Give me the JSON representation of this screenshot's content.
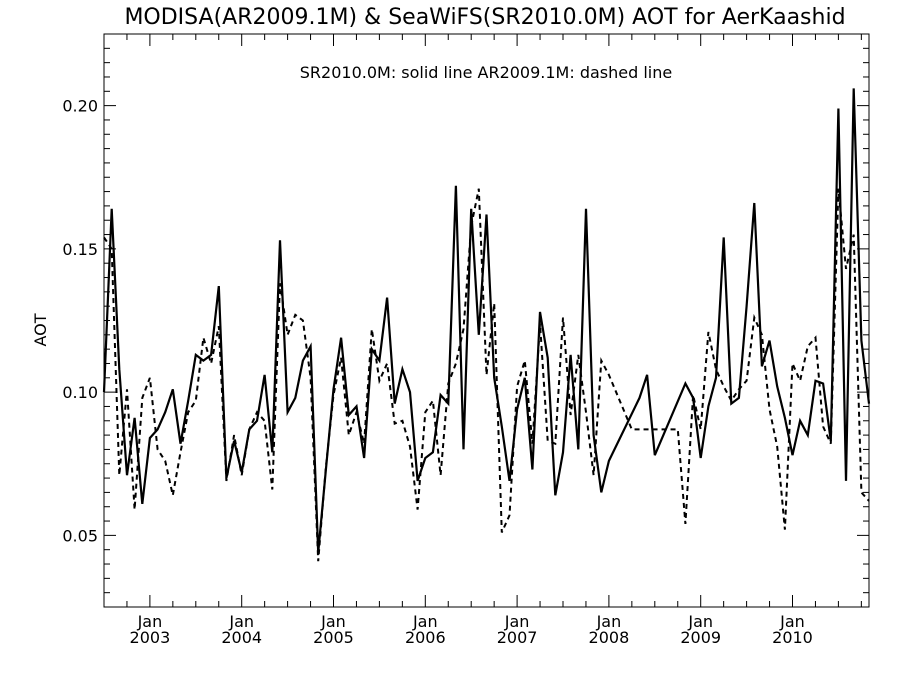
{
  "chart_data": {
    "type": "line",
    "title": "MODISA(AR2009.1M) & SeaWiFS(SR2010.0M)  AOT for AerKaashid",
    "annotation": "SR2010.0M: solid line   AR2009.1M: dashed line",
    "ylabel": "AOT",
    "xlabel": "",
    "ylim": [
      0.025,
      0.225
    ],
    "xlim": [
      "2002-07-01",
      "2010-11-01"
    ],
    "yticks": [
      {
        "value": 0.05,
        "label": "0.05"
      },
      {
        "value": 0.1,
        "label": "0.10"
      },
      {
        "value": 0.15,
        "label": "0.15"
      },
      {
        "value": 0.2,
        "label": "0.20"
      }
    ],
    "xticks": [
      {
        "date": "2003-01-01",
        "month": "Jan",
        "year": "2003"
      },
      {
        "date": "2004-01-01",
        "month": "Jan",
        "year": "2004"
      },
      {
        "date": "2005-01-01",
        "month": "Jan",
        "year": "2005"
      },
      {
        "date": "2006-01-01",
        "month": "Jan",
        "year": "2006"
      },
      {
        "date": "2007-01-01",
        "month": "Jan",
        "year": "2007"
      },
      {
        "date": "2008-01-01",
        "month": "Jan",
        "year": "2008"
      },
      {
        "date": "2009-01-01",
        "month": "Jan",
        "year": "2009"
      },
      {
        "date": "2010-01-01",
        "month": "Jan",
        "year": "2010"
      }
    ],
    "grid": false,
    "series": [
      {
        "name": "SR2010.0M",
        "style": "solid",
        "color": "#000000",
        "points": [
          [
            "2002-07",
            0.1
          ],
          [
            "2002-08",
            0.164
          ],
          [
            "2002-09",
            0.108
          ],
          [
            "2002-10",
            0.071
          ],
          [
            "2002-11",
            0.091
          ],
          [
            "2002-12",
            0.061
          ],
          [
            "2003-01",
            0.084
          ],
          [
            "2003-02",
            0.087
          ],
          [
            "2003-03",
            0.093
          ],
          [
            "2003-04",
            0.101
          ],
          [
            "2003-05",
            0.082
          ],
          [
            "2003-06",
            0.097
          ],
          [
            "2003-07",
            0.113
          ],
          [
            "2003-08",
            0.111
          ],
          [
            "2003-09",
            0.113
          ],
          [
            "2003-10",
            0.137
          ],
          [
            "2003-11",
            0.07
          ],
          [
            "2003-12",
            0.083
          ],
          [
            "2004-01",
            0.072
          ],
          [
            "2004-02",
            0.087
          ],
          [
            "2004-03",
            0.09
          ],
          [
            "2004-04",
            0.106
          ],
          [
            "2004-05",
            0.079
          ],
          [
            "2004-06",
            0.153
          ],
          [
            "2004-07",
            0.093
          ],
          [
            "2004-08",
            0.098
          ],
          [
            "2004-09",
            0.111
          ],
          [
            "2004-10",
            0.116
          ],
          [
            "2004-11",
            0.044
          ],
          [
            "2004-12",
            0.073
          ],
          [
            "2005-01",
            0.101
          ],
          [
            "2005-02",
            0.119
          ],
          [
            "2005-03",
            0.092
          ],
          [
            "2005-04",
            0.095
          ],
          [
            "2005-05",
            0.077
          ],
          [
            "2005-06",
            0.115
          ],
          [
            "2005-07",
            0.111
          ],
          [
            "2005-08",
            0.133
          ],
          [
            "2005-09",
            0.096
          ],
          [
            "2005-10",
            0.108
          ],
          [
            "2005-11",
            0.1
          ],
          [
            "2005-12",
            0.069
          ],
          [
            "2006-01",
            0.077
          ],
          [
            "2006-02",
            0.079
          ],
          [
            "2006-03",
            0.099
          ],
          [
            "2006-04",
            0.096
          ],
          [
            "2006-05",
            0.172
          ],
          [
            "2006-06",
            0.08
          ],
          [
            "2006-07",
            0.164
          ],
          [
            "2006-08",
            0.12
          ],
          [
            "2006-09",
            0.162
          ],
          [
            "2006-10",
            0.105
          ],
          [
            "2006-11",
            0.088
          ],
          [
            "2006-12",
            0.069
          ],
          [
            "2007-01",
            0.094
          ],
          [
            "2007-02",
            0.105
          ],
          [
            "2007-03",
            0.073
          ],
          [
            "2007-04",
            0.128
          ],
          [
            "2007-05",
            0.112
          ],
          [
            "2007-06",
            0.064
          ],
          [
            "2007-07",
            0.079
          ],
          [
            "2007-08",
            0.113
          ],
          [
            "2007-09",
            0.08
          ],
          [
            "2007-10",
            0.164
          ],
          [
            "2007-11",
            0.085
          ],
          [
            "2007-12",
            0.065
          ],
          [
            "2008-01",
            0.076
          ],
          [
            "2008-05",
            0.098
          ],
          [
            "2008-06",
            0.106
          ],
          [
            "2008-07",
            0.078
          ],
          [
            "2008-11",
            0.103
          ],
          [
            "2008-12",
            0.098
          ],
          [
            "2009-01",
            0.077
          ],
          [
            "2009-02",
            0.095
          ],
          [
            "2009-03",
            0.105
          ],
          [
            "2009-04",
            0.154
          ],
          [
            "2009-05",
            0.096
          ],
          [
            "2009-06",
            0.098
          ],
          [
            "2009-07",
            0.13
          ],
          [
            "2009-08",
            0.166
          ],
          [
            "2009-09",
            0.109
          ],
          [
            "2009-10",
            0.118
          ],
          [
            "2009-11",
            0.102
          ],
          [
            "2009-12",
            0.091
          ],
          [
            "2010-01",
            0.078
          ],
          [
            "2010-02",
            0.09
          ],
          [
            "2010-03",
            0.085
          ],
          [
            "2010-04",
            0.104
          ],
          [
            "2010-05",
            0.103
          ],
          [
            "2010-06",
            0.083
          ],
          [
            "2010-07",
            0.199
          ],
          [
            "2010-08",
            0.069
          ],
          [
            "2010-09",
            0.206
          ],
          [
            "2010-10",
            0.118
          ],
          [
            "2010-11",
            0.096
          ]
        ]
      },
      {
        "name": "AR2009.1M",
        "style": "dashed",
        "color": "#000000",
        "points": [
          [
            "2002-07",
            0.154
          ],
          [
            "2002-08",
            0.15
          ],
          [
            "2002-09",
            0.071
          ],
          [
            "2002-10",
            0.101
          ],
          [
            "2002-11",
            0.059
          ],
          [
            "2002-12",
            0.098
          ],
          [
            "2003-01",
            0.105
          ],
          [
            "2003-02",
            0.08
          ],
          [
            "2003-03",
            0.076
          ],
          [
            "2003-04",
            0.064
          ],
          [
            "2003-05",
            0.079
          ],
          [
            "2003-06",
            0.093
          ],
          [
            "2003-07",
            0.097
          ],
          [
            "2003-08",
            0.119
          ],
          [
            "2003-09",
            0.11
          ],
          [
            "2003-10",
            0.123
          ],
          [
            "2003-11",
            0.069
          ],
          [
            "2003-12",
            0.085
          ],
          [
            "2004-01",
            0.071
          ],
          [
            "2004-02",
            0.087
          ],
          [
            "2004-03",
            0.093
          ],
          [
            "2004-04",
            0.09
          ],
          [
            "2004-05",
            0.066
          ],
          [
            "2004-06",
            0.138
          ],
          [
            "2004-07",
            0.12
          ],
          [
            "2004-08",
            0.127
          ],
          [
            "2004-09",
            0.125
          ],
          [
            "2004-10",
            0.105
          ],
          [
            "2004-11",
            0.041
          ],
          [
            "2004-12",
            0.074
          ],
          [
            "2005-01",
            0.099
          ],
          [
            "2005-02",
            0.112
          ],
          [
            "2005-03",
            0.085
          ],
          [
            "2005-04",
            0.093
          ],
          [
            "2005-05",
            0.082
          ],
          [
            "2005-06",
            0.122
          ],
          [
            "2005-07",
            0.104
          ],
          [
            "2005-08",
            0.11
          ],
          [
            "2005-09",
            0.089
          ],
          [
            "2005-10",
            0.09
          ],
          [
            "2005-11",
            0.081
          ],
          [
            "2005-12",
            0.059
          ],
          [
            "2006-01",
            0.093
          ],
          [
            "2006-02",
            0.097
          ],
          [
            "2006-03",
            0.071
          ],
          [
            "2006-04",
            0.103
          ],
          [
            "2006-05",
            0.11
          ],
          [
            "2006-06",
            0.122
          ],
          [
            "2006-07",
            0.158
          ],
          [
            "2006-08",
            0.171
          ],
          [
            "2006-09",
            0.106
          ],
          [
            "2006-10",
            0.131
          ],
          [
            "2006-11",
            0.051
          ],
          [
            "2006-12",
            0.057
          ],
          [
            "2007-01",
            0.102
          ],
          [
            "2007-02",
            0.111
          ],
          [
            "2007-03",
            0.082
          ],
          [
            "2007-04",
            0.124
          ],
          [
            "2007-05",
            0.083
          ],
          [
            "2007-06",
            0.082
          ],
          [
            "2007-07",
            0.126
          ],
          [
            "2007-08",
            0.092
          ],
          [
            "2007-09",
            0.113
          ],
          [
            "2007-10",
            0.093
          ],
          [
            "2007-11",
            0.071
          ],
          [
            "2007-12",
            0.111
          ],
          [
            "2008-01",
            0.106
          ],
          [
            "2008-04",
            0.087
          ],
          [
            "2008-10",
            0.087
          ],
          [
            "2008-11",
            0.054
          ],
          [
            "2008-12",
            0.099
          ],
          [
            "2009-01",
            0.087
          ],
          [
            "2009-02",
            0.121
          ],
          [
            "2009-03",
            0.108
          ],
          [
            "2009-04",
            0.102
          ],
          [
            "2009-05",
            0.097
          ],
          [
            "2009-06",
            0.101
          ],
          [
            "2009-07",
            0.104
          ],
          [
            "2009-08",
            0.126
          ],
          [
            "2009-09",
            0.12
          ],
          [
            "2009-10",
            0.094
          ],
          [
            "2009-11",
            0.081
          ],
          [
            "2009-12",
            0.052
          ],
          [
            "2010-01",
            0.11
          ],
          [
            "2010-02",
            0.104
          ],
          [
            "2010-03",
            0.116
          ],
          [
            "2010-04",
            0.119
          ],
          [
            "2010-05",
            0.088
          ],
          [
            "2010-06",
            0.082
          ],
          [
            "2010-07",
            0.171
          ],
          [
            "2010-08",
            0.143
          ],
          [
            "2010-09",
            0.155
          ],
          [
            "2010-10",
            0.065
          ],
          [
            "2010-11",
            0.062
          ]
        ]
      }
    ]
  }
}
